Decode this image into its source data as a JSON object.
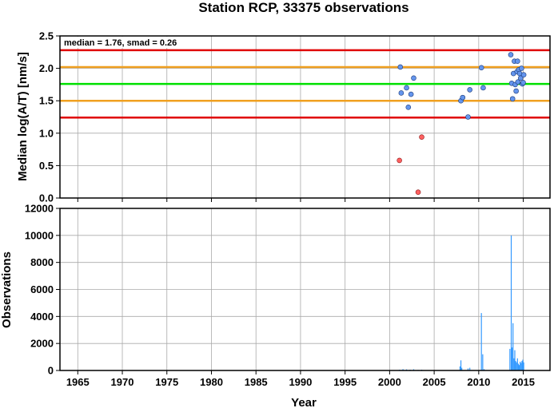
{
  "title": "Station RCP, 33375 observations",
  "chart_data": [
    {
      "type": "scatter",
      "ylabel": "Median log(A/T) [nm/s]",
      "xlim": [
        1963,
        2018
      ],
      "ylim": [
        0,
        2.5
      ],
      "yticks": [
        "0.0",
        "0.5",
        "1.0",
        "1.5",
        "2.0",
        "2.5"
      ],
      "grid": true,
      "annotation": "median = 1.76, smad = 0.26",
      "colors": {
        "median": "#00e000",
        "inner": "#f0a020",
        "outer": "#e00000",
        "point": "#6495ed",
        "outlier": "#ff6060"
      },
      "hlines": [
        {
          "role": "outer",
          "y": 2.28
        },
        {
          "role": "inner",
          "y": 2.02
        },
        {
          "role": "median",
          "y": 1.76
        },
        {
          "role": "inner",
          "y": 1.5
        },
        {
          "role": "outer",
          "y": 1.24
        }
      ],
      "points": [
        {
          "x": 2001.2,
          "y": 2.02
        },
        {
          "x": 2001.3,
          "y": 1.62
        },
        {
          "x": 2001.9,
          "y": 1.7
        },
        {
          "x": 2002.1,
          "y": 1.4
        },
        {
          "x": 2002.4,
          "y": 1.6
        },
        {
          "x": 2002.7,
          "y": 1.85
        },
        {
          "x": 2008.0,
          "y": 1.5
        },
        {
          "x": 2008.2,
          "y": 1.55
        },
        {
          "x": 2008.8,
          "y": 1.25
        },
        {
          "x": 2009.0,
          "y": 1.67
        },
        {
          "x": 2010.3,
          "y": 2.01
        },
        {
          "x": 2010.5,
          "y": 1.7
        },
        {
          "x": 2013.6,
          "y": 2.21
        },
        {
          "x": 2013.7,
          "y": 1.77
        },
        {
          "x": 2013.8,
          "y": 1.53
        },
        {
          "x": 2013.9,
          "y": 1.92
        },
        {
          "x": 2014.0,
          "y": 2.11
        },
        {
          "x": 2014.1,
          "y": 1.75
        },
        {
          "x": 2014.2,
          "y": 1.65
        },
        {
          "x": 2014.3,
          "y": 1.95
        },
        {
          "x": 2014.35,
          "y": 2.11
        },
        {
          "x": 2014.4,
          "y": 1.79
        },
        {
          "x": 2014.5,
          "y": 1.98
        },
        {
          "x": 2014.6,
          "y": 1.92
        },
        {
          "x": 2014.7,
          "y": 1.85
        },
        {
          "x": 2014.8,
          "y": 2.0
        },
        {
          "x": 2014.9,
          "y": 1.76
        },
        {
          "x": 2015.0,
          "y": 1.78
        },
        {
          "x": 2015.05,
          "y": 1.9
        }
      ],
      "outliers": [
        {
          "x": 2001.1,
          "y": 0.58
        },
        {
          "x": 2003.2,
          "y": 0.09
        },
        {
          "x": 2003.6,
          "y": 0.94
        }
      ]
    },
    {
      "type": "bar",
      "xlabel": "Year",
      "ylabel": "Observations",
      "xlim": [
        1963,
        2018
      ],
      "ylim": [
        0,
        12000
      ],
      "xticks": [
        "1965",
        "1970",
        "1975",
        "1980",
        "1985",
        "1990",
        "1995",
        "2000",
        "2005",
        "2010",
        "2015"
      ],
      "yticks": [
        "0",
        "2000",
        "4000",
        "6000",
        "8000",
        "10000",
        "12000"
      ],
      "grid": true,
      "color": "#3399ff",
      "bars": [
        {
          "x": 2001.1,
          "y": 60
        },
        {
          "x": 2001.5,
          "y": 100
        },
        {
          "x": 2001.9,
          "y": 80
        },
        {
          "x": 2002.3,
          "y": 60
        },
        {
          "x": 2002.7,
          "y": 90
        },
        {
          "x": 2003.2,
          "y": 40
        },
        {
          "x": 2003.6,
          "y": 60
        },
        {
          "x": 2007.9,
          "y": 300
        },
        {
          "x": 2008.0,
          "y": 750
        },
        {
          "x": 2008.1,
          "y": 200
        },
        {
          "x": 2008.8,
          "y": 150
        },
        {
          "x": 2009.0,
          "y": 200
        },
        {
          "x": 2010.3,
          "y": 4250
        },
        {
          "x": 2010.45,
          "y": 1200
        },
        {
          "x": 2010.6,
          "y": 100
        },
        {
          "x": 2013.5,
          "y": 1600
        },
        {
          "x": 2013.65,
          "y": 10000
        },
        {
          "x": 2013.75,
          "y": 1700
        },
        {
          "x": 2013.85,
          "y": 3500
        },
        {
          "x": 2013.95,
          "y": 900
        },
        {
          "x": 2014.05,
          "y": 1500
        },
        {
          "x": 2014.15,
          "y": 700
        },
        {
          "x": 2014.25,
          "y": 600
        },
        {
          "x": 2014.35,
          "y": 900
        },
        {
          "x": 2014.45,
          "y": 500
        },
        {
          "x": 2014.55,
          "y": 400
        },
        {
          "x": 2014.65,
          "y": 650
        },
        {
          "x": 2014.75,
          "y": 550
        },
        {
          "x": 2014.85,
          "y": 700
        },
        {
          "x": 2014.95,
          "y": 800
        },
        {
          "x": 2015.05,
          "y": 600
        }
      ]
    }
  ]
}
